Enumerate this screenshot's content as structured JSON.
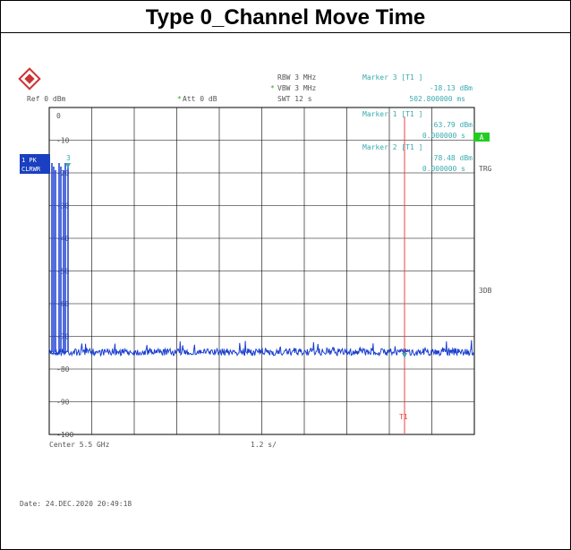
{
  "title": "Type 0_Channel Move Time",
  "settings": {
    "rbw": "RBW  3 MHz",
    "vbw": "VBW  3 MHz",
    "swt": "SWT  12 s",
    "ref": "Ref   0 dBm",
    "att": "Att   0 dB"
  },
  "markers": [
    {
      "label": "Marker 3 [T1 ]",
      "level": "-18.13 dBm",
      "time": "502.800000 ms"
    },
    {
      "label": "Marker 1 [T1 ]",
      "level": "-63.79 dBm",
      "time": "0.000000 s"
    },
    {
      "label": "Marker 2 [T1 ]",
      "level": "-78.48 dBm",
      "time": "0.000000 s"
    }
  ],
  "y_labels": [
    "0",
    "-10",
    "-20",
    "-30",
    "-40",
    "-50",
    "-60",
    "-70",
    "-80",
    "-90",
    "-100"
  ],
  "side": {
    "a": "A",
    "trg": "TRG",
    "db3": "3DB",
    "trace1": "1 PK",
    "trace2": "CLRWR",
    "marker_num": "3",
    "t1": "T1"
  },
  "footer": {
    "center": "Center 5.5 GHz",
    "span": "1.2 s/",
    "date": "Date: 24.DEC.2020  20:49:18"
  }
}
